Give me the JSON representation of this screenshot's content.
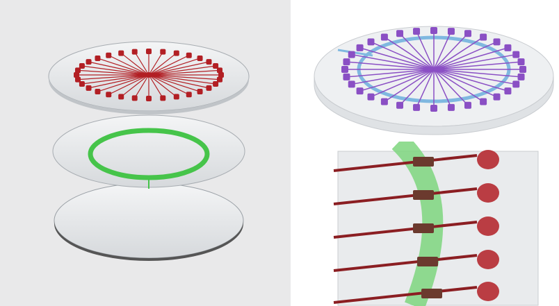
{
  "figure": {
    "panels": [
      {
        "id": "exploded-view",
        "layers": [
          "electrode-array-layer",
          "microfluidic-ring-layer",
          "base-substrate-layer"
        ]
      },
      {
        "id": "assembled-view",
        "layers": [
          "electrode-array-layer",
          "microfluidic-ring-layer",
          "base-substrate-layer"
        ]
      },
      {
        "id": "zoomed-view",
        "layers": [
          "electrode-traces",
          "microfluidic-channel",
          "contact-pads"
        ]
      }
    ],
    "electrode_count": 32,
    "colors": {
      "electrode_red": "#b21f24",
      "electrode_purple": "#8a4fc4",
      "channel_green": "#46c44a",
      "channel_blue": "#7fb8e0",
      "glass": "#d9dcdf",
      "background_left": "#e9e9ea"
    }
  }
}
